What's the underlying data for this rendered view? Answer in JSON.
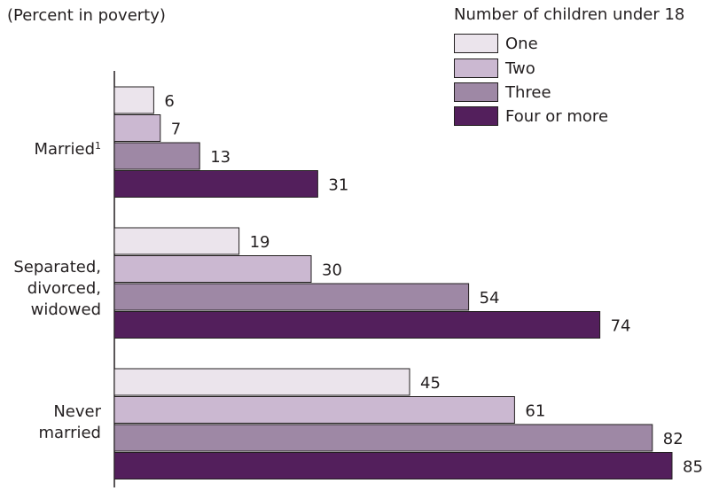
{
  "unit_note": "(Percent in poverty)",
  "legend": {
    "title": "Number of children under 18",
    "items": [
      {
        "label": "One",
        "color": "#ebe4ec"
      },
      {
        "label": "Two",
        "color": "#cbb8d1"
      },
      {
        "label": "Three",
        "color": "#9e88a5"
      },
      {
        "label": "Four or more",
        "color": "#531f5c"
      }
    ]
  },
  "categories": [
    {
      "lines": [
        "Married"
      ],
      "footnote_mark": "1"
    },
    {
      "lines": [
        "Separated,",
        "divorced,",
        "widowed"
      ]
    },
    {
      "lines": [
        "Never",
        "married"
      ]
    }
  ],
  "chart_data": {
    "type": "bar",
    "orientation": "horizontal",
    "title": "",
    "xlabel": "",
    "ylabel": "(Percent in poverty)",
    "legend_title": "Number of children under 18",
    "legend_position": "top-right",
    "grid": false,
    "categories": [
      "Married",
      "Separated, divorced, widowed",
      "Never married"
    ],
    "series": [
      {
        "name": "One",
        "values": [
          6,
          19,
          45
        ],
        "color": "#ebe4ec"
      },
      {
        "name": "Two",
        "values": [
          7,
          30,
          61
        ],
        "color": "#cbb8d1"
      },
      {
        "name": "Three",
        "values": [
          13,
          54,
          82
        ],
        "color": "#9e88a5"
      },
      {
        "name": "Four or more",
        "values": [
          31,
          74,
          85
        ],
        "color": "#531f5c"
      }
    ],
    "xlim": [
      0,
      85
    ]
  }
}
